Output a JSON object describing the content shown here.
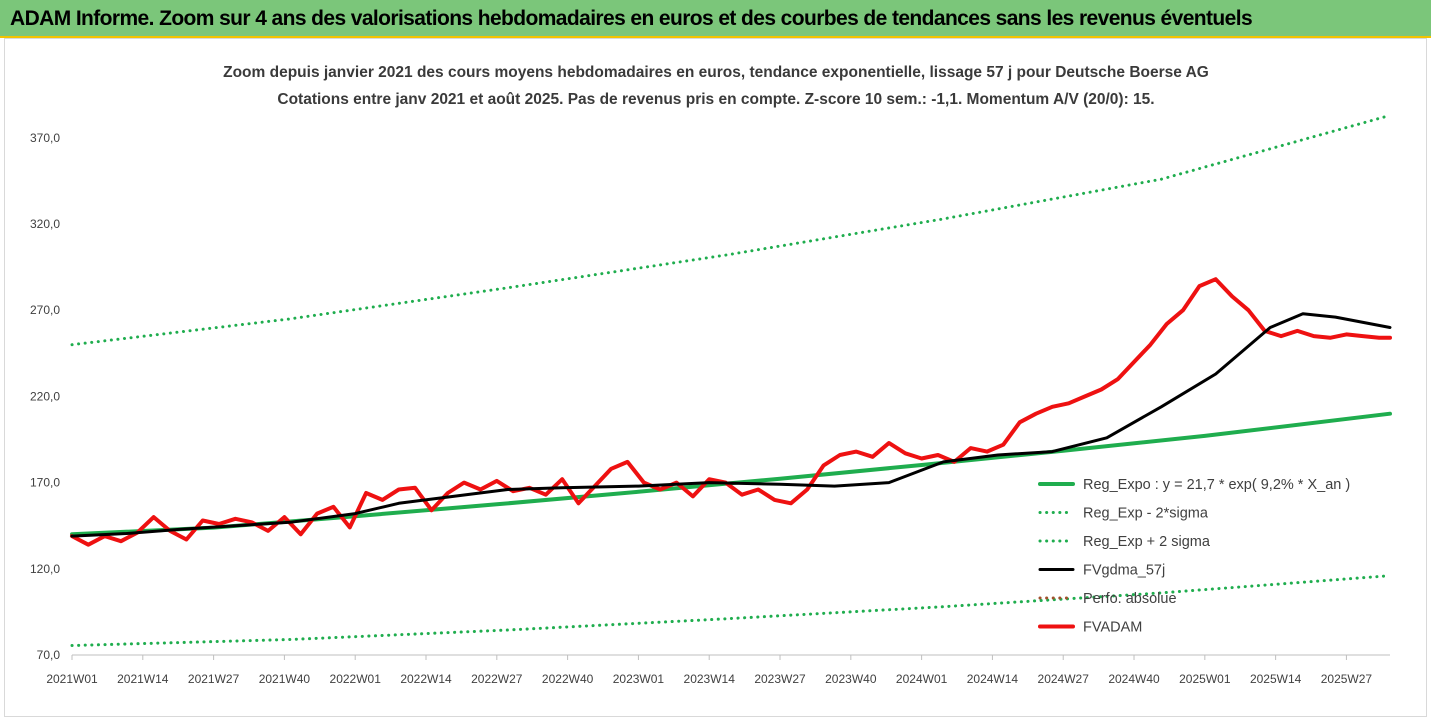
{
  "banner": {
    "title": "ADAM Informe. Zoom sur 4 ans des valorisations hebdomadaires en euros et des courbes de tendances sans les revenus éventuels",
    "background": "#7bc67a",
    "border_color": "#f2c300"
  },
  "chart_data": {
    "type": "line",
    "title": "Zoom depuis janvier 2021 des cours moyens hebdomadaires en euros, tendance exponentielle, lissage 57 j pour Deutsche Boerse AG",
    "subtitle": "Cotations entre janv 2021 et août 2025.  Pas de revenus pris en compte. Z-score 10 sem.: -1,1. Momentum A/V (20/0): 15.",
    "xlabel": "",
    "ylabel": "",
    "ylim": [
      70,
      385
    ],
    "yticks": [
      "70,0",
      "120,0",
      "170,0",
      "220,0",
      "270,0",
      "320,0",
      "370,0"
    ],
    "ytick_values": [
      70,
      120,
      170,
      220,
      270,
      320,
      370
    ],
    "xtick_labels": [
      "2021W01",
      "2021W14",
      "2021W27",
      "2021W40",
      "2022W01",
      "2022W14",
      "2022W27",
      "2022W40",
      "2023W01",
      "2023W14",
      "2023W27",
      "2023W40",
      "2024W01",
      "2024W14",
      "2024W27",
      "2024W40",
      "2025W01",
      "2025W14",
      "2025W27"
    ],
    "x_first_week_index": 0,
    "x_last_week_index": 242,
    "grid": false,
    "legend_position": "lower-right",
    "series": [
      {
        "name": "Reg_Expo : y = 21,7 * exp( 9,2% *  X_an )",
        "style": "solid",
        "color": "#1fad4e",
        "x": [
          0,
          26,
          52,
          78,
          104,
          130,
          156,
          182,
          208,
          242
        ],
        "values": [
          140.0,
          143.9,
          150.5,
          157.4,
          164.7,
          172.3,
          180.2,
          188.5,
          197.1,
          210.0
        ]
      },
      {
        "name": "Reg_Exp - 2*sigma",
        "style": "dotted",
        "color": "#1fad4e",
        "x": [
          0,
          40,
          80,
          120,
          160,
          200,
          242
        ],
        "values": [
          75.5,
          79.0,
          84.5,
          91.0,
          98.0,
          106.0,
          116.0
        ]
      },
      {
        "name": "Reg_Exp + 2 sigma",
        "style": "dotted",
        "color": "#1fad4e",
        "x": [
          0,
          40,
          80,
          120,
          160,
          200,
          242
        ],
        "values": [
          250.0,
          265.0,
          283.0,
          302.0,
          323.0,
          346.0,
          383.0
        ]
      },
      {
        "name": "FVgdma_57j",
        "style": "solid",
        "color": "#000000",
        "x": [
          0,
          10,
          20,
          30,
          40,
          52,
          60,
          70,
          80,
          90,
          104,
          117,
          130,
          140,
          150,
          160,
          170,
          180,
          190,
          200,
          210,
          220,
          226,
          232,
          242
        ],
        "values": [
          139.0,
          140.5,
          143.0,
          145.0,
          147.0,
          152.0,
          158.0,
          162.0,
          166.0,
          167.0,
          168.0,
          170.0,
          169.0,
          168.0,
          170.0,
          182.0,
          186.0,
          188.0,
          196.0,
          214.0,
          233.0,
          260.0,
          268.0,
          266.0,
          260.0
        ]
      },
      {
        "name": "Perfo. absolue",
        "style": "dotted",
        "color": "#a0522d",
        "x": [],
        "values": []
      },
      {
        "name": "FVADAM",
        "style": "solid",
        "color": "#ee1111",
        "x": [
          0,
          3,
          6,
          9,
          12,
          15,
          18,
          21,
          24,
          27,
          30,
          33,
          36,
          39,
          42,
          45,
          48,
          51,
          54,
          57,
          60,
          63,
          66,
          69,
          72,
          75,
          78,
          81,
          84,
          87,
          90,
          93,
          96,
          99,
          102,
          105,
          108,
          111,
          114,
          117,
          120,
          123,
          126,
          129,
          132,
          135,
          138,
          141,
          144,
          147,
          150,
          153,
          156,
          159,
          162,
          165,
          168,
          171,
          174,
          177,
          180,
          183,
          186,
          189,
          192,
          195,
          198,
          201,
          204,
          207,
          210,
          213,
          216,
          219,
          222,
          225,
          228,
          231,
          234,
          237,
          240,
          242
        ],
        "values": [
          139,
          134,
          139,
          136,
          141,
          150,
          142,
          137,
          148,
          146,
          149,
          147,
          142,
          150,
          140,
          152,
          156,
          144,
          164,
          160,
          166,
          167,
          154,
          164,
          170,
          166,
          171,
          165,
          167,
          163,
          172,
          158,
          168,
          178,
          182,
          170,
          166,
          170,
          162,
          172,
          170,
          163,
          166,
          160,
          158,
          166,
          180,
          186,
          188,
          185,
          193,
          187,
          184,
          186,
          182,
          190,
          188,
          192,
          205,
          210,
          214,
          216,
          220,
          224,
          230,
          240,
          250,
          262,
          270,
          284,
          288,
          278,
          270,
          258,
          255,
          258,
          255,
          254,
          256,
          255,
          254,
          254
        ]
      }
    ]
  }
}
